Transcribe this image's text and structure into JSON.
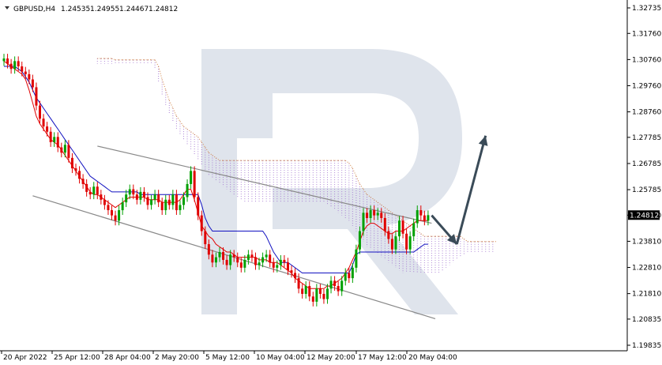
{
  "header": {
    "symbol": "GBPUSD,H4",
    "open": "1.24535",
    "high": "1.24955",
    "low": "1.24467",
    "close": "1.24812"
  },
  "current_price_label": "1.24812",
  "colors": {
    "bull_candle": "#00a000",
    "bear_candle": "#e00000",
    "tenkan": "#e00000",
    "kijun": "#1010c0",
    "cloud_a": "#d08040",
    "cloud_b": "#9966cc",
    "channel": "#888888",
    "arrow": "#3a4b58",
    "watermark": "#dfe4ec",
    "price_label_bg": "#000000"
  },
  "chart_data": {
    "type": "candlestick",
    "title": "GBPUSD,H4",
    "y_ticks": [
      "1.32735",
      "1.31760",
      "1.30760",
      "1.29760",
      "1.28760",
      "1.27785",
      "1.26785",
      "1.25785",
      "1.24810",
      "1.23810",
      "1.22810",
      "1.21810",
      "1.20835",
      "1.19835"
    ],
    "ylim": [
      1.19835,
      1.32735
    ],
    "x_ticks": [
      "20 Apr 2022",
      "25 Apr 12:00",
      "28 Apr 04:00",
      "2 May 20:00",
      "5 May 12:00",
      "10 May 04:00",
      "12 May 20:00",
      "17 May 12:00",
      "20 May 04:00"
    ],
    "candles_close": [
      1.308,
      1.306,
      1.304,
      1.307,
      1.305,
      1.303,
      1.302,
      1.3,
      1.297,
      1.29,
      1.285,
      1.282,
      1.28,
      1.276,
      1.278,
      1.274,
      1.272,
      1.275,
      1.27,
      1.266,
      1.265,
      1.262,
      1.26,
      1.257,
      1.256,
      1.259,
      1.256,
      1.254,
      1.252,
      1.25,
      1.248,
      1.246,
      1.25,
      1.253,
      1.256,
      1.258,
      1.256,
      1.254,
      1.257,
      1.255,
      1.252,
      1.254,
      1.256,
      1.253,
      1.25,
      1.254,
      1.252,
      1.256,
      1.25,
      1.252,
      1.255,
      1.26,
      1.265,
      1.255,
      1.248,
      1.242,
      1.237,
      1.233,
      1.23,
      1.232,
      1.234,
      1.231,
      1.229,
      1.233,
      1.232,
      1.23,
      1.228,
      1.231,
      1.233,
      1.232,
      1.229,
      1.23,
      1.232,
      1.233,
      1.23,
      1.228,
      1.229,
      1.231,
      1.23,
      1.227,
      1.226,
      1.224,
      1.22,
      1.218,
      1.221,
      1.217,
      1.215,
      1.22,
      1.218,
      1.216,
      1.22,
      1.223,
      1.221,
      1.219,
      1.223,
      1.226,
      1.224,
      1.228,
      1.235,
      1.242,
      1.249,
      1.247,
      1.25,
      1.248,
      1.249,
      1.247,
      1.242,
      1.239,
      1.235,
      1.24,
      1.246,
      1.241,
      1.235,
      1.24,
      1.245,
      1.25,
      1.248,
      1.246,
      1.2481
    ],
    "tenkan": [
      1.307,
      1.306,
      1.305,
      1.304,
      1.303,
      1.302,
      1.3,
      1.296,
      1.291,
      1.286,
      1.283,
      1.281,
      1.279,
      1.277,
      1.276,
      1.275,
      1.273,
      1.271,
      1.269,
      1.267,
      1.265,
      1.263,
      1.261,
      1.259,
      1.257,
      1.256,
      1.256,
      1.255,
      1.254,
      1.253,
      1.252,
      1.251,
      1.252,
      1.253,
      1.254,
      1.255,
      1.255,
      1.255,
      1.255,
      1.255,
      1.254,
      1.254,
      1.254,
      1.254,
      1.253,
      1.253,
      1.253,
      1.253,
      1.253,
      1.254,
      1.256,
      1.258,
      1.258,
      1.254,
      1.249,
      1.244,
      1.242,
      1.24,
      1.239,
      1.237,
      1.236,
      1.235,
      1.234,
      1.234,
      1.233,
      1.232,
      1.232,
      1.232,
      1.232,
      1.232,
      1.232,
      1.231,
      1.231,
      1.231,
      1.23,
      1.23,
      1.23,
      1.229,
      1.228,
      1.227,
      1.226,
      1.224,
      1.223,
      1.222,
      1.221,
      1.22,
      1.22,
      1.22,
      1.22,
      1.22,
      1.221,
      1.221,
      1.222,
      1.223,
      1.224,
      1.226,
      1.228,
      1.231,
      1.234,
      1.238,
      1.242,
      1.244,
      1.245,
      1.245,
      1.244,
      1.243,
      1.242,
      1.241,
      1.241,
      1.242,
      1.242,
      1.242,
      1.243,
      1.244,
      1.245,
      1.246,
      1.246,
      1.246,
      1.246
    ],
    "kijun": [
      1.305,
      1.305,
      1.305,
      1.305,
      1.304,
      1.303,
      1.301,
      1.299,
      1.296,
      1.293,
      1.291,
      1.289,
      1.287,
      1.285,
      1.283,
      1.281,
      1.279,
      1.277,
      1.275,
      1.273,
      1.271,
      1.269,
      1.267,
      1.265,
      1.263,
      1.262,
      1.261,
      1.26,
      1.259,
      1.258,
      1.257,
      1.257,
      1.257,
      1.257,
      1.257,
      1.257,
      1.257,
      1.257,
      1.256,
      1.256,
      1.256,
      1.256,
      1.256,
      1.256,
      1.256,
      1.256,
      1.256,
      1.256,
      1.256,
      1.256,
      1.256,
      1.256,
      1.256,
      1.256,
      1.256,
      1.252,
      1.247,
      1.244,
      1.242,
      1.242,
      1.242,
      1.242,
      1.242,
      1.242,
      1.242,
      1.242,
      1.242,
      1.242,
      1.242,
      1.242,
      1.242,
      1.242,
      1.242,
      1.24,
      1.237,
      1.234,
      1.232,
      1.23,
      1.23,
      1.23,
      1.229,
      1.228,
      1.227,
      1.226,
      1.226,
      1.226,
      1.226,
      1.226,
      1.226,
      1.226,
      1.226,
      1.226,
      1.226,
      1.226,
      1.226,
      1.226,
      1.226,
      1.229,
      1.233,
      1.234,
      1.234,
      1.234,
      1.234,
      1.234,
      1.234,
      1.234,
      1.234,
      1.234,
      1.234,
      1.234,
      1.234,
      1.234,
      1.234,
      1.234,
      1.234,
      1.235,
      1.236,
      1.237,
      1.237
    ],
    "cloud_upper": [
      1.308,
      1.308,
      1.308,
      1.308,
      1.308,
      1.3075,
      1.3075,
      1.3075,
      1.3075,
      1.3075,
      1.3075,
      1.3075,
      1.3075,
      1.3075,
      1.3075,
      1.3075,
      1.3075,
      1.305,
      1.3,
      1.296,
      1.292,
      1.289,
      1.286,
      1.284,
      1.282,
      1.281,
      1.28,
      1.279,
      1.278,
      1.276,
      1.274,
      1.272,
      1.271,
      1.27,
      1.269,
      1.269,
      1.269,
      1.269,
      1.269,
      1.269,
      1.269,
      1.269,
      1.269,
      1.269,
      1.269,
      1.269,
      1.269,
      1.269,
      1.269,
      1.269,
      1.269,
      1.269,
      1.269,
      1.269,
      1.269,
      1.269,
      1.269,
      1.269,
      1.269,
      1.269,
      1.269,
      1.269,
      1.269,
      1.269,
      1.269,
      1.269,
      1.269,
      1.269,
      1.269,
      1.269,
      1.268,
      1.266,
      1.263,
      1.26,
      1.258,
      1.256,
      1.255,
      1.254,
      1.253,
      1.252,
      1.251,
      1.25,
      1.249,
      1.248,
      1.247,
      1.246,
      1.245,
      1.244,
      1.243,
      1.242,
      1.241,
      1.24,
      1.24,
      1.24,
      1.24,
      1.24,
      1.24,
      1.24,
      1.24,
      1.24,
      1.24,
      1.24,
      1.239,
      1.238,
      1.238,
      1.238,
      1.238,
      1.238,
      1.238,
      1.238,
      1.238,
      1.238,
      1.238,
      1.238,
      1.238,
      1.238,
      1.238,
      1.238,
      1.238,
      1.238
    ],
    "cloud_lower": [
      1.306,
      1.306,
      1.306,
      1.306,
      1.306,
      1.306,
      1.306,
      1.306,
      1.306,
      1.306,
      1.306,
      1.306,
      1.306,
      1.306,
      1.306,
      1.306,
      1.304,
      1.299,
      1.294,
      1.29,
      1.287,
      1.284,
      1.281,
      1.279,
      1.277,
      1.275,
      1.273,
      1.271,
      1.269,
      1.267,
      1.265,
      1.263,
      1.262,
      1.261,
      1.26,
      1.259,
      1.258,
      1.257,
      1.256,
      1.255,
      1.254,
      1.253,
      1.253,
      1.253,
      1.253,
      1.253,
      1.253,
      1.253,
      1.253,
      1.253,
      1.253,
      1.253,
      1.253,
      1.253,
      1.253,
      1.253,
      1.253,
      1.253,
      1.253,
      1.253,
      1.253,
      1.253,
      1.253,
      1.253,
      1.252,
      1.251,
      1.25,
      1.249,
      1.248,
      1.247,
      1.246,
      1.244,
      1.242,
      1.24,
      1.238,
      1.236,
      1.235,
      1.234,
      1.233,
      1.232,
      1.231,
      1.23,
      1.229,
      1.228,
      1.227,
      1.226,
      1.226,
      1.226,
      1.226,
      1.226,
      1.226,
      1.226,
      1.226,
      1.226,
      1.226,
      1.226,
      1.227,
      1.228,
      1.229,
      1.23,
      1.231,
      1.232,
      1.233,
      1.234,
      1.234,
      1.234,
      1.234,
      1.234,
      1.234,
      1.234,
      1.234,
      1.234,
      1.234,
      1.235,
      1.236,
      1.237,
      1.237,
      1.237,
      1.237
    ],
    "channel_upper": [
      [
        26,
        1.2745
      ],
      [
        88,
        1.2545
      ],
      [
        119,
        1.245
      ]
    ],
    "channel_lower": [
      [
        8,
        1.2555
      ],
      [
        72,
        1.231
      ],
      [
        120,
        1.2085
      ]
    ],
    "forecast_arrow": [
      [
        119,
        1.248
      ],
      [
        126,
        1.237
      ],
      [
        134,
        1.2785
      ]
    ]
  }
}
